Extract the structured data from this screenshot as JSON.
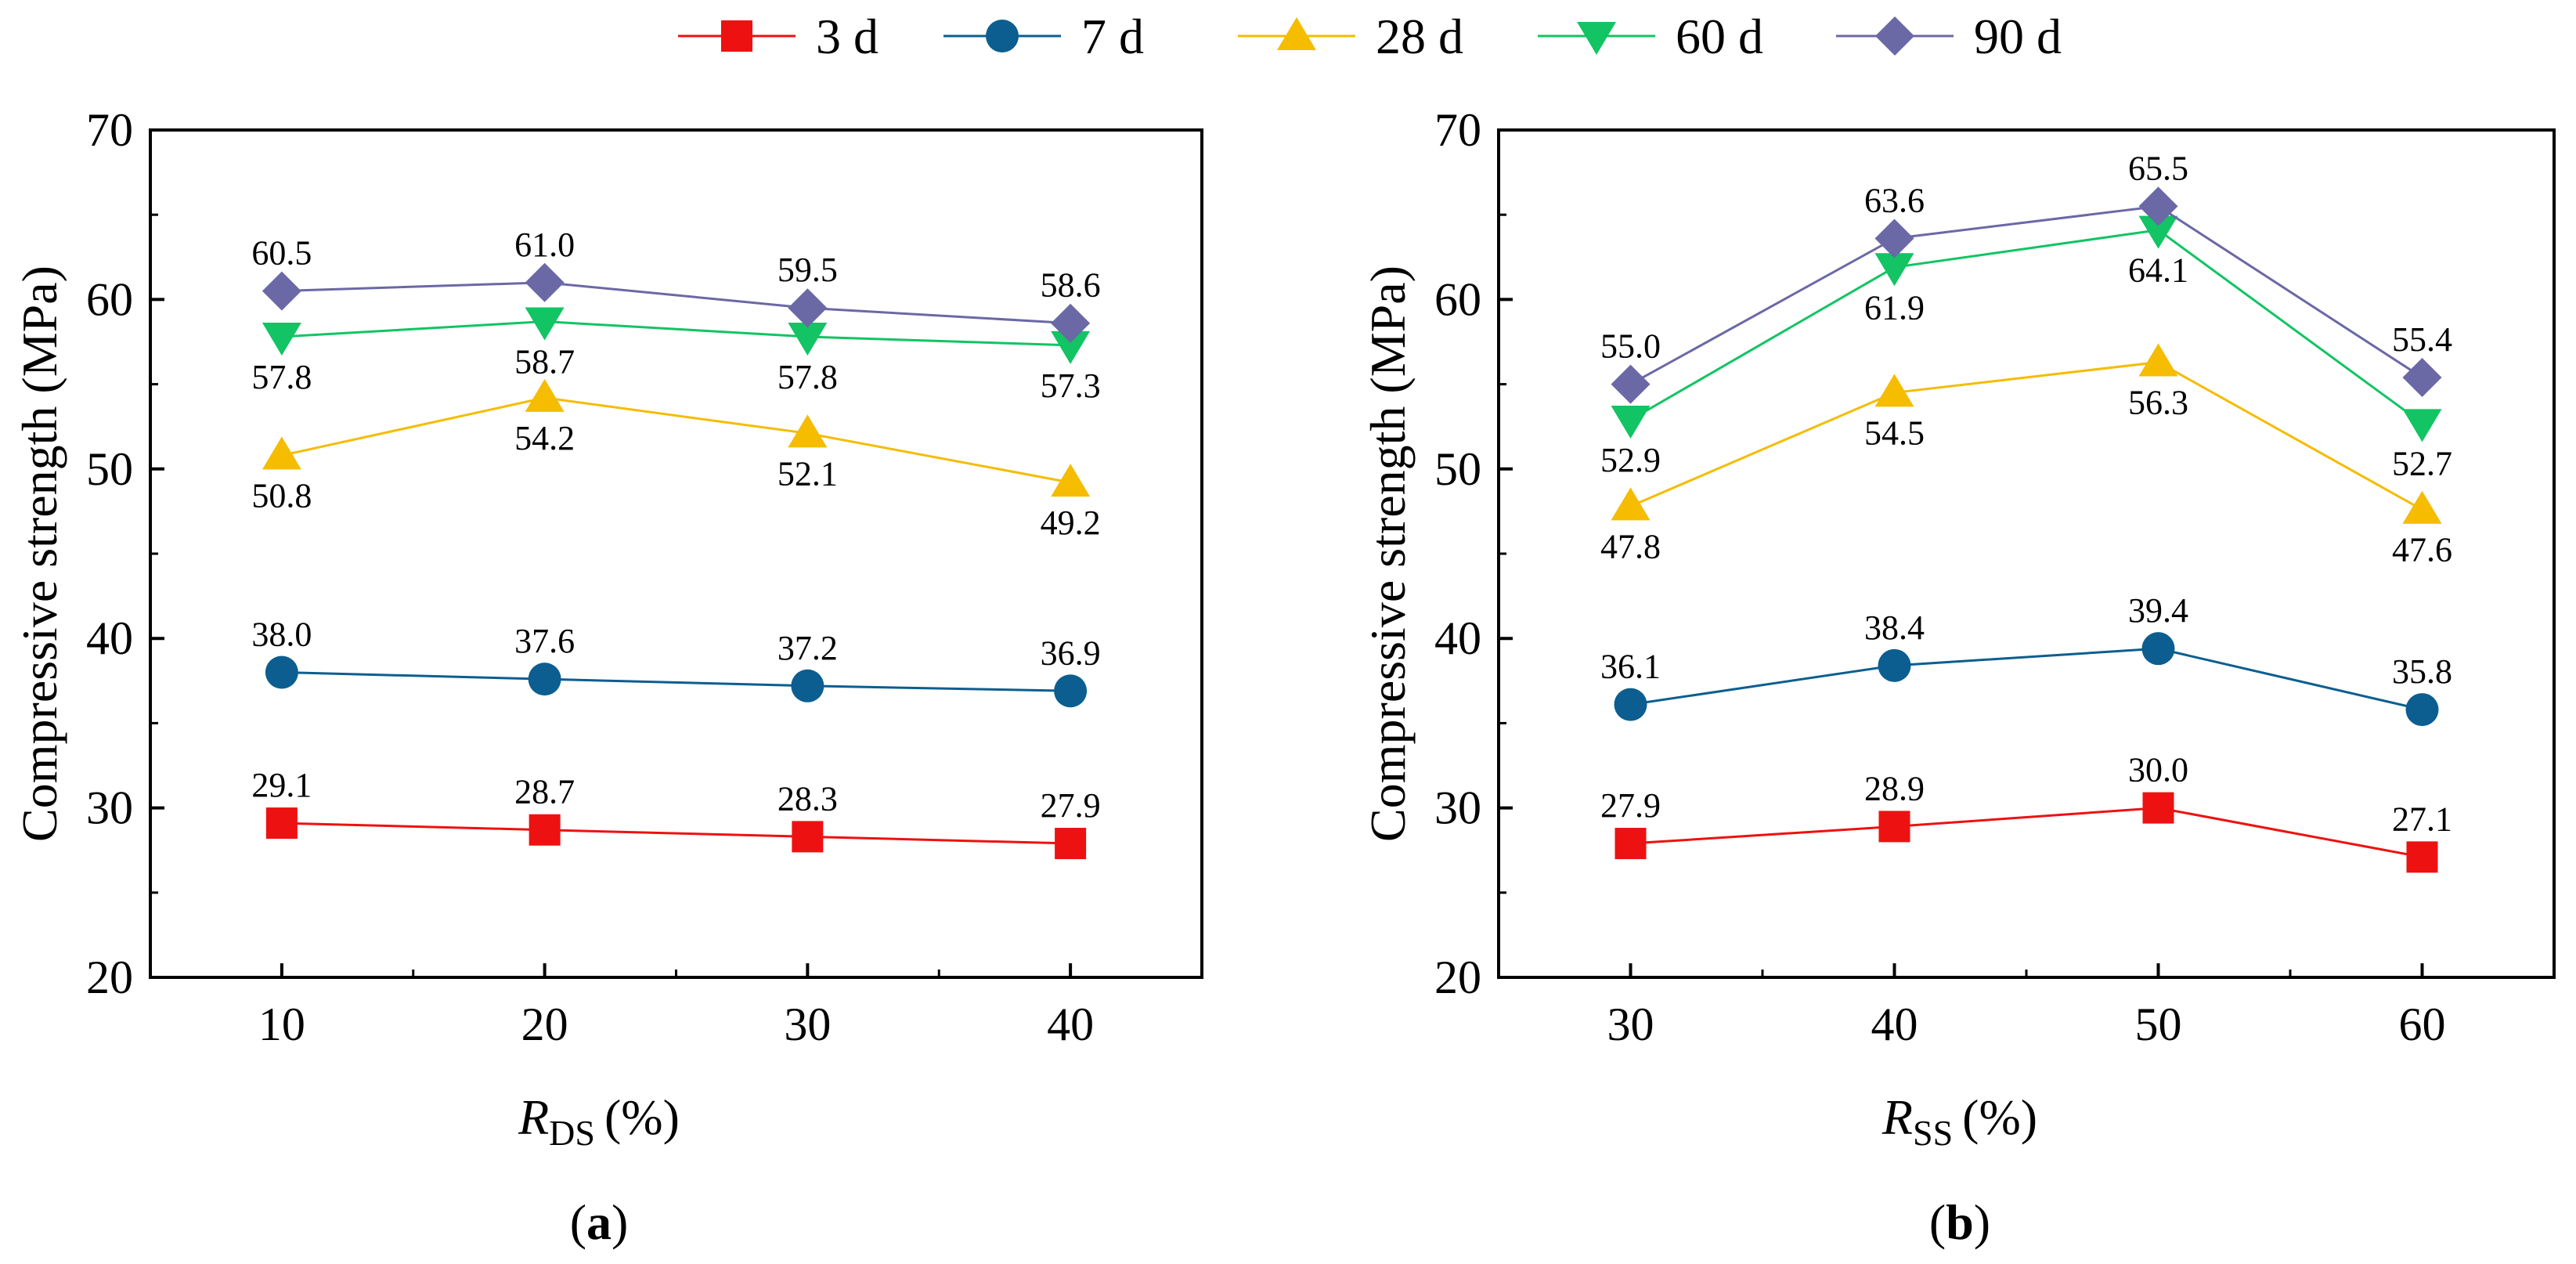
{
  "legend": [
    {
      "key": "d3",
      "label": "3 d",
      "color": "#ee1111",
      "marker": "square"
    },
    {
      "key": "d7",
      "label": "7 d",
      "color": "#0b5e8f",
      "marker": "circle"
    },
    {
      "key": "d28",
      "label": "28 d",
      "color": "#f5bc00",
      "marker": "triangle-up"
    },
    {
      "key": "d60",
      "label": "60 d",
      "color": "#12c463",
      "marker": "triangle-down"
    },
    {
      "key": "d90",
      "label": "90 d",
      "color": "#6b68a6",
      "marker": "diamond"
    }
  ],
  "chart_data": [
    {
      "type": "line",
      "panel_label": "(a)",
      "ylabel": "Compressive strength (MPa)",
      "xlabel_main": "R",
      "xlabel_sub": "DS",
      "xlabel_unit": "(%)",
      "x": [
        10,
        20,
        30,
        40
      ],
      "xlim": [
        5,
        45
      ],
      "ylim": [
        20,
        70
      ],
      "yticks": [
        20,
        30,
        40,
        50,
        60,
        70
      ],
      "series": [
        {
          "key": "d3",
          "name": "3 d",
          "values": [
            29.1,
            28.7,
            28.3,
            27.9
          ],
          "labels": [
            "29.1",
            "28.7",
            "28.3",
            "27.9"
          ],
          "label_pos": [
            "above",
            "above",
            "above",
            "above"
          ]
        },
        {
          "key": "d7",
          "name": "7 d",
          "values": [
            38.0,
            37.6,
            37.2,
            36.9
          ],
          "labels": [
            "38.0",
            "37.6",
            "37.2",
            "36.9"
          ],
          "label_pos": [
            "above",
            "above",
            "above",
            "above"
          ]
        },
        {
          "key": "d28",
          "name": "28 d",
          "values": [
            50.8,
            54.2,
            52.1,
            49.2
          ],
          "labels": [
            "50.8",
            "54.2",
            "52.1",
            "49.2"
          ],
          "label_pos": [
            "below",
            "below",
            "below",
            "below"
          ]
        },
        {
          "key": "d60",
          "name": "60 d",
          "values": [
            57.8,
            58.7,
            57.8,
            57.3
          ],
          "labels": [
            "57.8",
            "58.7",
            "57.8",
            "57.3"
          ],
          "label_pos": [
            "below",
            "below",
            "below",
            "below"
          ]
        },
        {
          "key": "d90",
          "name": "90 d",
          "values": [
            60.5,
            61.0,
            59.5,
            58.6
          ],
          "labels": [
            "60.5",
            "61.0",
            "59.5",
            "58.6"
          ],
          "label_pos": [
            "above",
            "above",
            "above",
            "above"
          ]
        }
      ]
    },
    {
      "type": "line",
      "panel_label": "(b)",
      "ylabel": "Compressive strength (MPa)",
      "xlabel_main": "R",
      "xlabel_sub": "SS",
      "xlabel_unit": "(%)",
      "x": [
        30,
        40,
        50,
        60
      ],
      "xlim": [
        25,
        65
      ],
      "ylim": [
        20,
        70
      ],
      "yticks": [
        20,
        30,
        40,
        50,
        60,
        70
      ],
      "series": [
        {
          "key": "d3",
          "name": "3 d",
          "values": [
            27.9,
            28.9,
            30.0,
            27.1
          ],
          "labels": [
            "27.9",
            "28.9",
            "30.0",
            "27.1"
          ],
          "label_pos": [
            "above",
            "above",
            "above",
            "above"
          ]
        },
        {
          "key": "d7",
          "name": "7 d",
          "values": [
            36.1,
            38.4,
            39.4,
            35.8
          ],
          "labels": [
            "36.1",
            "38.4",
            "39.4",
            "35.8"
          ],
          "label_pos": [
            "above",
            "above",
            "above",
            "above"
          ]
        },
        {
          "key": "d28",
          "name": "28 d",
          "values": [
            47.8,
            54.5,
            56.3,
            47.6
          ],
          "labels": [
            "47.8",
            "54.5",
            "56.3",
            "47.6"
          ],
          "label_pos": [
            "below",
            "below",
            "below",
            "below"
          ]
        },
        {
          "key": "d60",
          "name": "60 d",
          "values": [
            52.9,
            61.9,
            64.1,
            52.7
          ],
          "labels": [
            "52.9",
            "61.9",
            "64.1",
            "52.7"
          ],
          "label_pos": [
            "below",
            "below",
            "below",
            "below"
          ]
        },
        {
          "key": "d90",
          "name": "90 d",
          "values": [
            55.0,
            63.6,
            65.5,
            55.4
          ],
          "labels": [
            "55.0",
            "63.6",
            "65.5",
            "55.4"
          ],
          "label_pos": [
            "above",
            "above",
            "above",
            "above"
          ]
        }
      ]
    }
  ]
}
